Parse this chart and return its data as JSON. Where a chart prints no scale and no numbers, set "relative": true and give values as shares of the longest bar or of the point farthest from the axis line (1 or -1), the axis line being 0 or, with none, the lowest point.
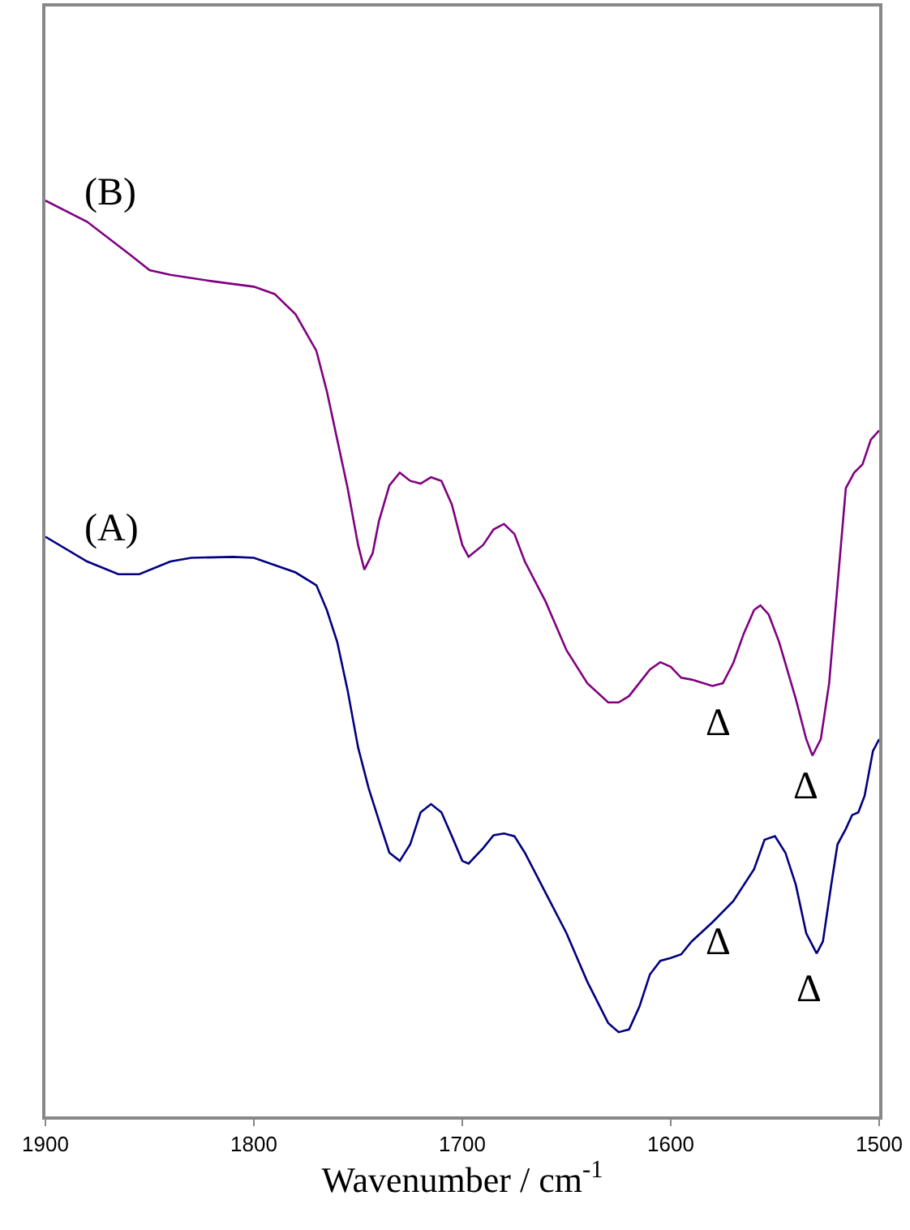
{
  "chart_data": {
    "type": "line",
    "relative": true,
    "xlabel": "Wavenumber / cm$^{-1}$",
    "xlim": [
      1900,
      1500
    ],
    "xticks": [
      1900,
      1800,
      1700,
      1600,
      1500
    ],
    "tick_labels": "x",
    "legend": false,
    "marker": "none",
    "line_style": "solid",
    "series": [
      {
        "name": "(B)",
        "color": "#800080",
        "x": [
          1900,
          1880,
          1860,
          1850,
          1840,
          1820,
          1800,
          1790,
          1780,
          1770,
          1765,
          1760,
          1755,
          1750,
          1747,
          1743,
          1740,
          1735,
          1730,
          1725,
          1720,
          1715,
          1710,
          1705,
          1700,
          1697,
          1690,
          1685,
          1680,
          1675,
          1670,
          1660,
          1650,
          1640,
          1630,
          1625,
          1620,
          1610,
          1605,
          1600,
          1595,
          1590,
          1580,
          1575,
          1570,
          1565,
          1560,
          1557,
          1553,
          1548,
          1540,
          1535,
          1532,
          1528,
          1524,
          1520,
          1516,
          1512,
          1508,
          1504,
          1500
        ],
        "values": [
          1.0,
          0.977,
          0.942,
          0.924,
          0.919,
          0.912,
          0.906,
          0.898,
          0.876,
          0.836,
          0.792,
          0.739,
          0.686,
          0.624,
          0.597,
          0.615,
          0.65,
          0.689,
          0.703,
          0.694,
          0.691,
          0.698,
          0.694,
          0.668,
          0.624,
          0.611,
          0.624,
          0.641,
          0.647,
          0.636,
          0.606,
          0.562,
          0.509,
          0.473,
          0.452,
          0.452,
          0.459,
          0.488,
          0.496,
          0.491,
          0.479,
          0.477,
          0.47,
          0.473,
          0.495,
          0.527,
          0.553,
          0.558,
          0.548,
          0.518,
          0.456,
          0.412,
          0.394,
          0.412,
          0.473,
          0.58,
          0.686,
          0.703,
          0.712,
          0.739,
          0.749
        ]
      },
      {
        "name": "(A)",
        "color": "#000080",
        "x": [
          1900,
          1880,
          1865,
          1855,
          1840,
          1830,
          1810,
          1800,
          1790,
          1780,
          1770,
          1765,
          1760,
          1755,
          1750,
          1745,
          1740,
          1735,
          1730,
          1725,
          1720,
          1715,
          1710,
          1705,
          1700,
          1697,
          1690,
          1685,
          1680,
          1675,
          1670,
          1660,
          1650,
          1640,
          1630,
          1625,
          1620,
          1615,
          1610,
          1605,
          1600,
          1595,
          1590,
          1580,
          1570,
          1560,
          1555,
          1550,
          1545,
          1540,
          1535,
          1530,
          1527,
          1523,
          1520,
          1516,
          1513,
          1510,
          1507,
          1503,
          1500
        ],
        "values": [
          0.633,
          0.606,
          0.592,
          0.592,
          0.606,
          0.61,
          0.611,
          0.61,
          0.602,
          0.594,
          0.58,
          0.553,
          0.518,
          0.465,
          0.403,
          0.359,
          0.323,
          0.288,
          0.279,
          0.297,
          0.332,
          0.341,
          0.332,
          0.306,
          0.279,
          0.276,
          0.293,
          0.307,
          0.309,
          0.306,
          0.288,
          0.244,
          0.2,
          0.147,
          0.102,
          0.092,
          0.095,
          0.12,
          0.155,
          0.17,
          0.173,
          0.177,
          0.191,
          0.212,
          0.235,
          0.27,
          0.302,
          0.306,
          0.288,
          0.253,
          0.2,
          0.178,
          0.191,
          0.253,
          0.297,
          0.314,
          0.329,
          0.332,
          0.35,
          0.399,
          0.412
        ]
      }
    ],
    "annotations": [
      "Δ",
      "Δ",
      "Δ",
      "Δ"
    ]
  }
}
